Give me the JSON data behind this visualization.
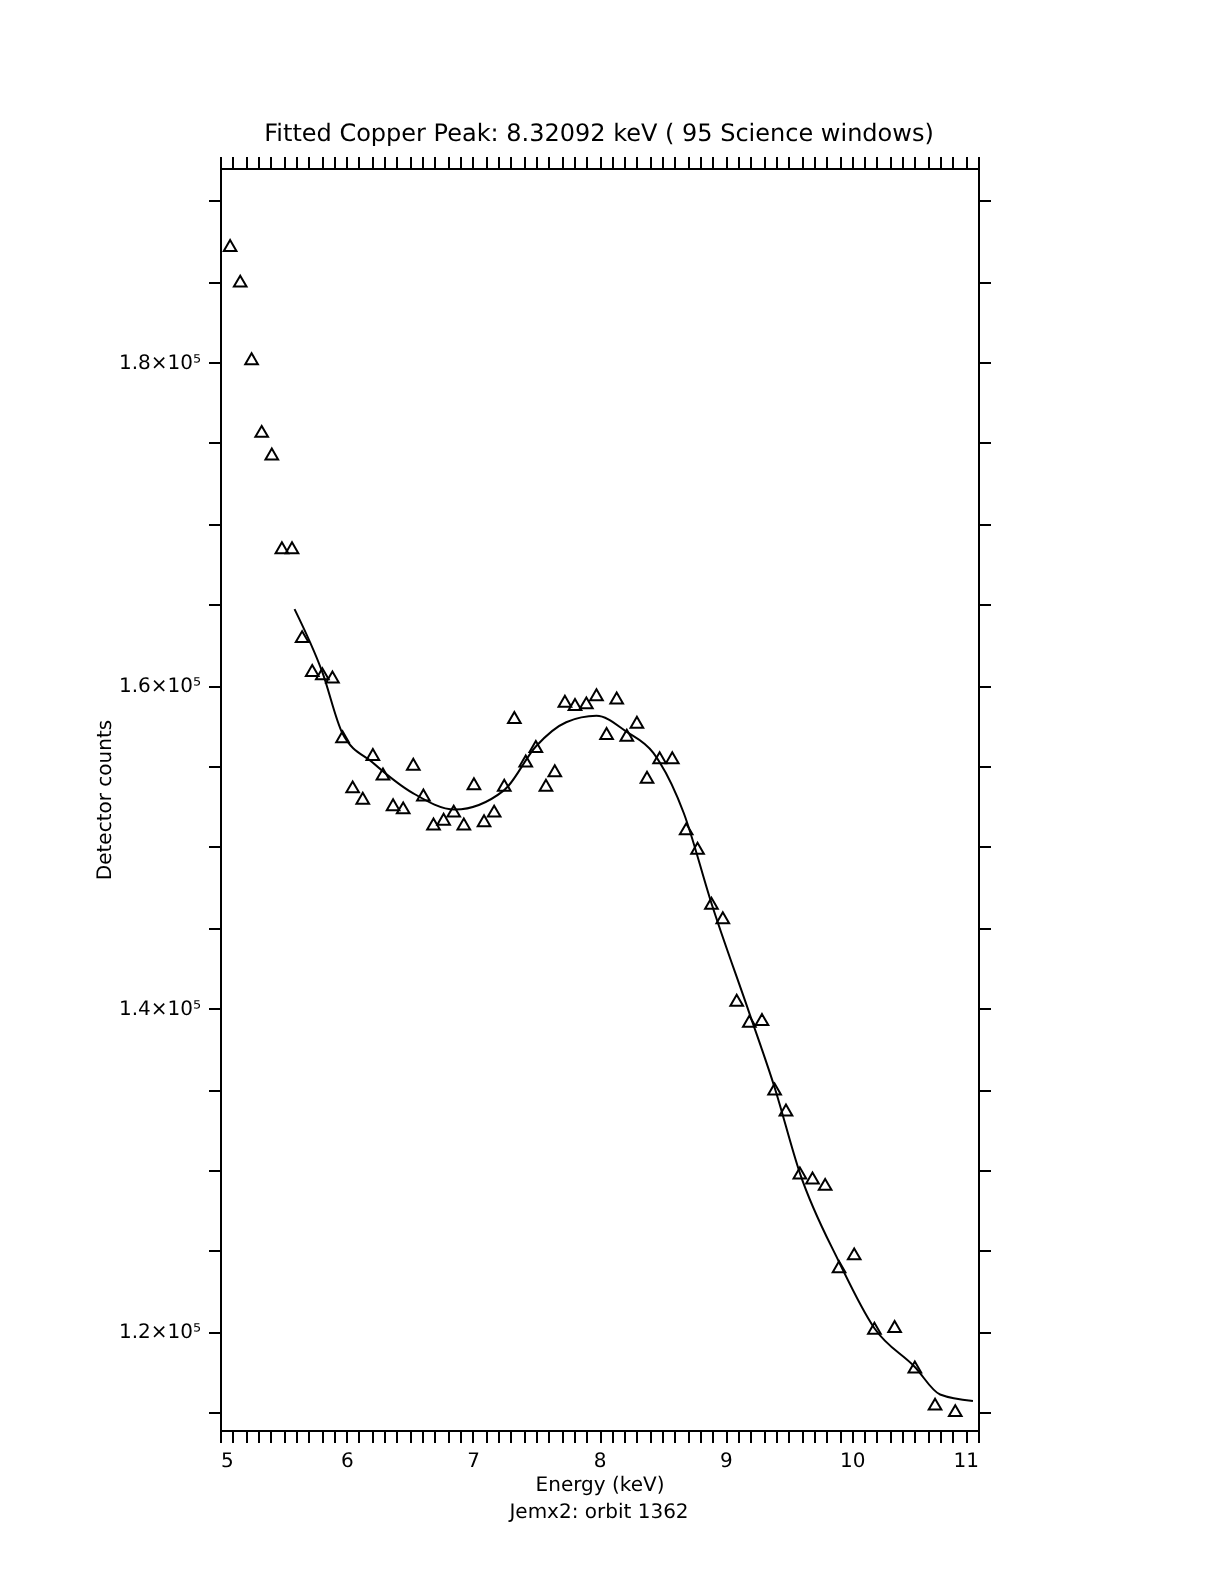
{
  "chart_data": {
    "type": "scatter",
    "title": "Fitted Copper Peak:       8.32092 keV (      95 Science windows)",
    "xlabel": "Energy (keV)",
    "ylabel": "Detector counts",
    "annotations": [
      "Jemx2: orbit 1362"
    ],
    "xlim": [
      5,
      11
    ],
    "ylim": [
      113900,
      192000
    ],
    "xticks": [
      5,
      {
        "value": 5.1,
        "label": null
      },
      {
        "value": 5.2,
        "label": null
      },
      {
        "value": 5.3,
        "label": null
      },
      {
        "value": 5.4,
        "label": null
      },
      {
        "value": 5.5,
        "label": null
      },
      {
        "value": 5.6,
        "label": null
      },
      {
        "value": 5.7,
        "label": null
      },
      {
        "value": 5.8,
        "label": null
      },
      {
        "value": 5.9,
        "label": null
      },
      6,
      {
        "value": 6.1,
        "label": null
      },
      {
        "value": 6.2,
        "label": null
      },
      {
        "value": 6.3,
        "label": null
      },
      {
        "value": 6.4,
        "label": null
      },
      {
        "value": 6.5,
        "label": null
      },
      {
        "value": 6.6,
        "label": null
      },
      {
        "value": 6.7,
        "label": null
      },
      {
        "value": 6.8,
        "label": null
      },
      {
        "value": 6.9,
        "label": null
      },
      7,
      {
        "value": 7.1,
        "label": null
      },
      {
        "value": 7.2,
        "label": null
      },
      {
        "value": 7.3,
        "label": null
      },
      {
        "value": 7.4,
        "label": null
      },
      {
        "value": 7.5,
        "label": null
      },
      {
        "value": 7.6,
        "label": null
      },
      {
        "value": 7.7,
        "label": null
      },
      {
        "value": 7.8,
        "label": null
      },
      {
        "value": 7.9,
        "label": null
      },
      8,
      {
        "value": 8.1,
        "label": null
      },
      {
        "value": 8.2,
        "label": null
      },
      {
        "value": 8.3,
        "label": null
      },
      {
        "value": 8.4,
        "label": null
      },
      {
        "value": 8.5,
        "label": null
      },
      {
        "value": 8.6,
        "label": null
      },
      {
        "value": 8.7,
        "label": null
      },
      {
        "value": 8.8,
        "label": null
      },
      {
        "value": 8.9,
        "label": null
      },
      9,
      {
        "value": 9.1,
        "label": null
      },
      {
        "value": 9.2,
        "label": null
      },
      {
        "value": 9.3,
        "label": null
      },
      {
        "value": 9.4,
        "label": null
      },
      {
        "value": 9.5,
        "label": null
      },
      {
        "value": 9.6,
        "label": null
      },
      {
        "value": 9.7,
        "label": null
      },
      {
        "value": 9.8,
        "label": null
      },
      {
        "value": 9.9,
        "label": null
      },
      10,
      {
        "value": 10.1,
        "label": null
      },
      {
        "value": 10.2,
        "label": null
      },
      {
        "value": 10.3,
        "label": null
      },
      {
        "value": 10.4,
        "label": null
      },
      {
        "value": 10.5,
        "label": null
      },
      {
        "value": 10.6,
        "label": null
      },
      {
        "value": 10.7,
        "label": null
      },
      {
        "value": 10.8,
        "label": null
      },
      {
        "value": 10.9,
        "label": null
      },
      11
    ],
    "yticks": [
      {
        "value": 115000,
        "label": null
      },
      {
        "value": 120000,
        "label": "1.2×10⁵"
      },
      {
        "value": 125000,
        "label": null
      },
      {
        "value": 130000,
        "label": null
      },
      {
        "value": 135000,
        "label": null
      },
      {
        "value": 140000,
        "label": "1.4×10⁵"
      },
      {
        "value": 145000,
        "label": null
      },
      {
        "value": 150000,
        "label": null
      },
      {
        "value": 155000,
        "label": null
      },
      {
        "value": 160000,
        "label": "1.6×10⁵"
      },
      {
        "value": 165000,
        "label": null
      },
      {
        "value": 170000,
        "label": null
      },
      {
        "value": 175000,
        "label": null
      },
      {
        "value": 180000,
        "label": "1.8×10⁵"
      },
      {
        "value": 185000,
        "label": null
      },
      {
        "value": 190000,
        "label": null
      }
    ],
    "grid": false,
    "series": [
      {
        "marker": "triangle",
        "color": "#000000",
        "x": [
          5.08,
          5.16,
          5.25,
          5.33,
          5.41,
          5.49,
          5.57,
          5.65,
          5.73,
          5.81,
          5.89,
          5.97,
          6.05,
          6.13,
          6.21,
          6.29,
          6.37,
          6.45,
          6.53,
          6.61,
          6.69,
          6.77,
          6.85,
          6.93,
          7.01,
          7.09,
          7.17,
          7.25,
          7.33,
          7.42,
          7.5,
          7.58,
          7.65,
          7.73,
          7.81,
          7.9,
          7.98,
          8.06,
          8.14,
          8.22,
          8.3,
          8.38,
          8.48,
          8.58,
          8.69,
          8.78,
          8.89,
          8.98,
          9.09,
          9.19,
          9.29,
          9.39,
          9.48,
          9.59,
          9.69,
          9.79,
          9.9,
          10.02,
          10.18,
          10.34,
          10.5,
          10.66,
          10.82
        ],
        "values": [
          187200,
          185000,
          180200,
          175700,
          174300,
          168500,
          168500,
          163000,
          160900,
          160700,
          160500,
          156800,
          153700,
          153000,
          155700,
          154500,
          152600,
          152400,
          155100,
          153200,
          151400,
          151700,
          152200,
          151400,
          153900,
          151600,
          152200,
          153800,
          158000,
          155300,
          156200,
          153800,
          154700,
          159000,
          158800,
          158900,
          159400,
          157000,
          159200,
          156900,
          157700,
          154300,
          155500,
          155500,
          151100,
          149900,
          146500,
          145600,
          140500,
          139200,
          139300,
          135000,
          133700,
          129800,
          129500,
          129100,
          124000,
          124800,
          120200,
          120300,
          117800,
          115500,
          115100
        ]
      },
      {
        "type": "line",
        "marker": "none",
        "line_style": "solid",
        "color": "#000000",
        "x": [
          5.59,
          5.81,
          5.97,
          6.21,
          6.53,
          6.86,
          7.25,
          7.5,
          7.74,
          7.98,
          8.22,
          8.43,
          8.67,
          8.89,
          9.19,
          9.39,
          9.59,
          9.9,
          10.18,
          10.5,
          10.7,
          10.96
        ],
        "values": [
          164700,
          160800,
          157000,
          155200,
          153300,
          152300,
          153500,
          156200,
          157700,
          158100,
          157100,
          155800,
          152100,
          146500,
          139700,
          135100,
          129800,
          124300,
          120200,
          117800,
          116100,
          115700
        ]
      }
    ]
  }
}
